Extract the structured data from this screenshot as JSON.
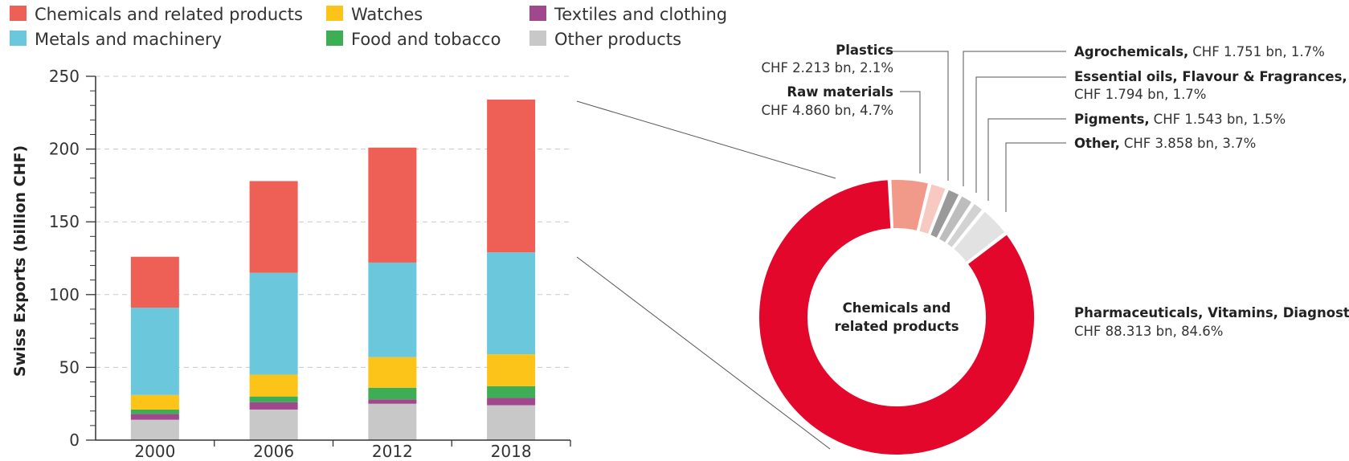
{
  "chart_data": [
    {
      "type": "bar",
      "stacked": true,
      "categories": [
        "2000",
        "2006",
        "2012",
        "2018"
      ],
      "ylabel": "Swiss Exports (billion CHF)",
      "xlabel": "",
      "ylim": [
        0,
        250
      ],
      "yticks": [
        "0",
        "50",
        "100",
        "150",
        "200",
        "250"
      ],
      "grid": "horizontal-dashed",
      "legend": "top",
      "series": [
        {
          "name": "Other products",
          "color": "#c8c8c8",
          "values": [
            14,
            21,
            25,
            24
          ]
        },
        {
          "name": "Textiles and clothing",
          "color": "#a0478e",
          "values": [
            4,
            5,
            3,
            5
          ]
        },
        {
          "name": "Food and tobacco",
          "color": "#3dae55",
          "values": [
            3,
            4,
            8,
            8
          ]
        },
        {
          "name": "Watches",
          "color": "#fcc419",
          "values": [
            10,
            15,
            21,
            22
          ]
        },
        {
          "name": "Metals and machinery",
          "color": "#6bc7db",
          "values": [
            60,
            70,
            65,
            70
          ]
        },
        {
          "name": "Chemicals and related products",
          "color": "#ee6055",
          "values": [
            35,
            63,
            79,
            105
          ]
        }
      ]
    },
    {
      "type": "pie",
      "donut": true,
      "center_label_lines": [
        "Chemicals and",
        "related products"
      ],
      "slices": [
        {
          "name": "Pharmaceuticals, Vitamins, Diagnostics",
          "value": 84.6,
          "detail": "CHF 88.313 bn, 84.6%",
          "color": "#e2072b"
        },
        {
          "name": "Raw materials",
          "value": 4.7,
          "detail": "CHF 4.860 bn, 4.7%",
          "color": "#f29a89"
        },
        {
          "name": "Plastics",
          "value": 2.1,
          "detail": "CHF 2.213 bn, 2.1%",
          "color": "#f8c9c1"
        },
        {
          "name": "Agrochemicals,",
          "value": 1.7,
          "detail": "CHF 1.751 bn, 1.7%",
          "color": "#9a9a9a"
        },
        {
          "name": "Essential oils, Flavour & Fragrances,",
          "value": 1.7,
          "detail": "CHF 1.794 bn, 1.7%",
          "color": "#bdbdbd"
        },
        {
          "name": "Pigments,",
          "value": 1.5,
          "detail": "CHF 1.543 bn, 1.5%",
          "color": "#d2d2d2"
        },
        {
          "name": "Other,",
          "value": 3.7,
          "detail": "CHF 3.858 bn, 3.7%",
          "color": "#e2e2e2"
        }
      ]
    }
  ],
  "legend_items": [
    {
      "label": "Chemicals and related products",
      "color": "#ee6055"
    },
    {
      "label": "Metals and machinery",
      "color": "#6bc7db"
    },
    {
      "label": "Watches",
      "color": "#fcc419"
    },
    {
      "label": "Food and tobacco",
      "color": "#3dae55"
    },
    {
      "label": "Textiles and clothing",
      "color": "#a0478e"
    },
    {
      "label": "Other products",
      "color": "#c8c8c8"
    }
  ],
  "colors": {
    "axis": "#333333",
    "grid": "#c8c8c8",
    "connector": "#555555"
  }
}
